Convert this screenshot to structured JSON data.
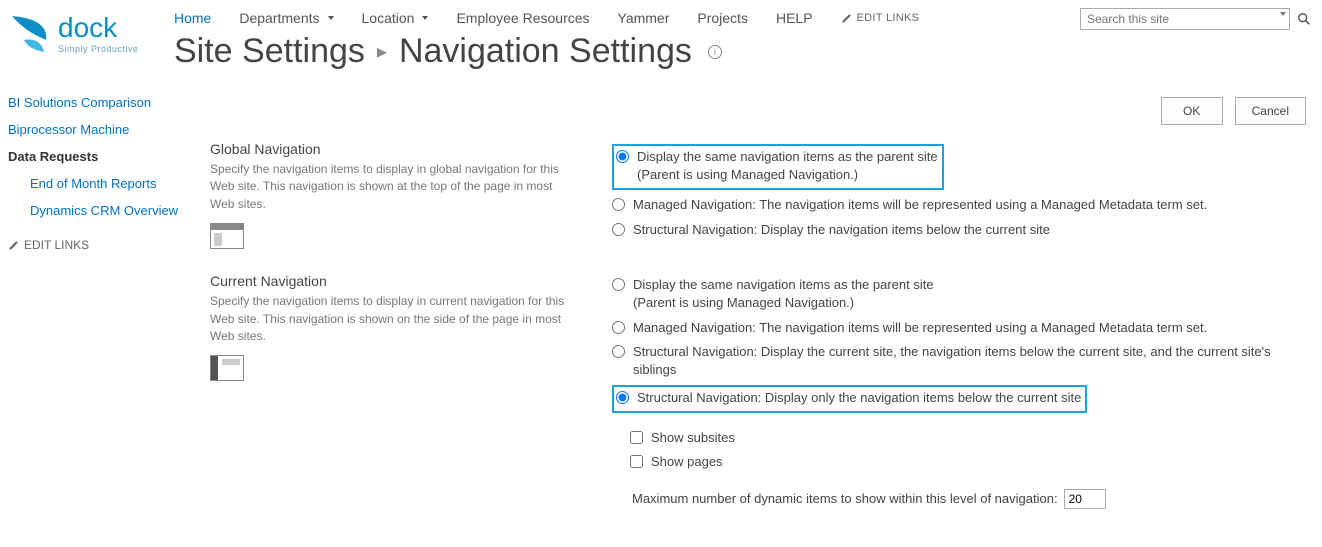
{
  "logo": {
    "brand": "dock",
    "tagline": "Simply Productive"
  },
  "topnav": [
    {
      "label": "Home",
      "key": "home",
      "dropdown": false,
      "cls": "home"
    },
    {
      "label": "Departments",
      "key": "departments",
      "dropdown": true
    },
    {
      "label": "Location",
      "key": "location",
      "dropdown": true
    },
    {
      "label": "Employee Resources",
      "key": "employee-resources",
      "dropdown": false
    },
    {
      "label": "Yammer",
      "key": "yammer",
      "dropdown": false
    },
    {
      "label": "Projects",
      "key": "projects",
      "dropdown": false
    },
    {
      "label": "HELP",
      "key": "help",
      "dropdown": false
    }
  ],
  "edit_links_label": "EDIT LINKS",
  "search_placeholder": "Search this site",
  "breadcrumb": {
    "parent": "Site Settings",
    "current": "Navigation Settings"
  },
  "sidebar": {
    "items": [
      {
        "label": "BI Solutions Comparison",
        "level": 1,
        "key": "bi-solutions"
      },
      {
        "label": "Biprocessor Machine",
        "level": 1,
        "key": "biprocessor"
      },
      {
        "label": "Data Requests",
        "level": 1,
        "key": "data-requests",
        "strong": true
      },
      {
        "label": "End of Month Reports",
        "level": 2,
        "key": "eom-reports"
      },
      {
        "label": "Dynamics CRM Overview",
        "level": 2,
        "key": "dynamics-crm"
      }
    ],
    "edit_links_label": "EDIT LINKS"
  },
  "buttons": {
    "ok": "OK",
    "cancel": "Cancel"
  },
  "sections": {
    "global": {
      "title": "Global Navigation",
      "desc": "Specify the navigation items to display in global navigation for this Web site. This navigation is shown at the top of the page in most Web sites.",
      "options": [
        {
          "name": "glob",
          "checked": true,
          "highlight": true,
          "label": "Display the same navigation items as the parent site",
          "sublabel": "(Parent is using Managed Navigation.)"
        },
        {
          "name": "glob",
          "checked": false,
          "label": "Managed Navigation: The navigation items will be represented using a Managed Metadata term set."
        },
        {
          "name": "glob",
          "checked": false,
          "label": "Structural Navigation: Display the navigation items below the current site"
        }
      ]
    },
    "current": {
      "title": "Current Navigation",
      "desc": "Specify the navigation items to display in current navigation for this Web site. This navigation is shown on the side of the page in most Web sites.",
      "options": [
        {
          "name": "curr",
          "checked": false,
          "label": "Display the same navigation items as the parent site",
          "sublabel": "(Parent is using Managed Navigation.)"
        },
        {
          "name": "curr",
          "checked": false,
          "label": "Managed Navigation: The navigation items will be represented using a Managed Metadata term set."
        },
        {
          "name": "curr",
          "checked": false,
          "label": "Structural Navigation: Display the current site, the navigation items below the current site, and the current site's siblings"
        },
        {
          "name": "curr",
          "checked": true,
          "highlight": true,
          "label": "Structural Navigation: Display only the navigation items below the current site"
        }
      ],
      "checkboxes": [
        {
          "label": "Show subsites",
          "checked": false
        },
        {
          "label": "Show pages",
          "checked": false
        }
      ],
      "dyn_label": "Maximum number of dynamic items to show within this level of navigation:",
      "dyn_value": "20"
    }
  },
  "colors": {
    "link": "#0072c6",
    "highlight_border": "#18a3e0",
    "text_muted": "#777"
  }
}
